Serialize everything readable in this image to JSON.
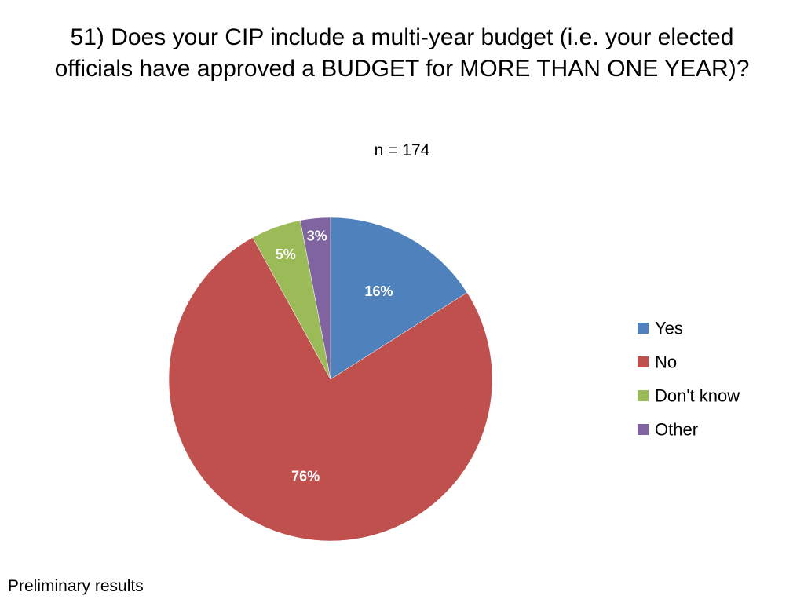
{
  "slide": {
    "title": "51) Does your CIP include a multi-year budget (i.e. your elected officials have approved a BUDGET for MORE THAN ONE YEAR)?",
    "subtitle": "n = 174",
    "footer": "Preliminary results"
  },
  "chart_data": {
    "type": "pie",
    "title": "51) Does your CIP include a multi-year budget (i.e. your elected officials have approved a BUDGET for MORE THAN ONE YEAR)?",
    "subtitle": "n = 174",
    "categories": [
      "Yes",
      "No",
      "Don't know",
      "Other"
    ],
    "values": [
      16,
      76,
      5,
      3
    ],
    "data_labels": [
      "16%",
      "76%",
      "5%",
      "3%"
    ],
    "colors": [
      "#4f81bd",
      "#c0504d",
      "#9bbb59",
      "#8064a2"
    ],
    "unit": "%",
    "legend_position": "right"
  }
}
